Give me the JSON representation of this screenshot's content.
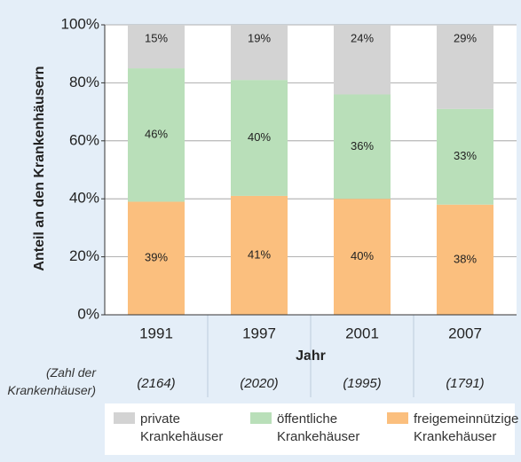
{
  "chart_data": {
    "type": "stacked_bar",
    "y_label": "Anteil an den Krankenhäusern",
    "x_label": "Jahr",
    "categories": [
      "1991",
      "1997",
      "2001",
      "2007"
    ],
    "count_label": "(Zahl der Krankenhäuser)",
    "count_labels": [
      "(2164)",
      "(2020)",
      "(1995)",
      "(1791)"
    ],
    "ylim": [
      0,
      100
    ],
    "yticks": [
      {
        "value": 0,
        "label": "0%"
      },
      {
        "value": 20,
        "label": "20%"
      },
      {
        "value": 40,
        "label": "40%"
      },
      {
        "value": 60,
        "label": "60%"
      },
      {
        "value": 80,
        "label": "80%"
      },
      {
        "value": 100,
        "label": "100%"
      }
    ],
    "grid": true,
    "series": [
      {
        "name": "freigemeinnützige Krankehäuser",
        "color": "#fbbf7e",
        "values": [
          39,
          41,
          40,
          38
        ],
        "value_labels": [
          "39%",
          "41%",
          "40%",
          "38%"
        ]
      },
      {
        "name": "öffentliche Krankehäuser",
        "color": "#b9dfb9",
        "values": [
          46,
          40,
          36,
          33
        ],
        "value_labels": [
          "46%",
          "40%",
          "36%",
          "33%"
        ]
      },
      {
        "name": "private Krankehäuser",
        "color": "#d3d3d3",
        "values": [
          15,
          19,
          24,
          29
        ],
        "value_labels": [
          "15%",
          "19%",
          "24%",
          "29%"
        ]
      }
    ],
    "legend_order": [
      2,
      1,
      0
    ]
  }
}
